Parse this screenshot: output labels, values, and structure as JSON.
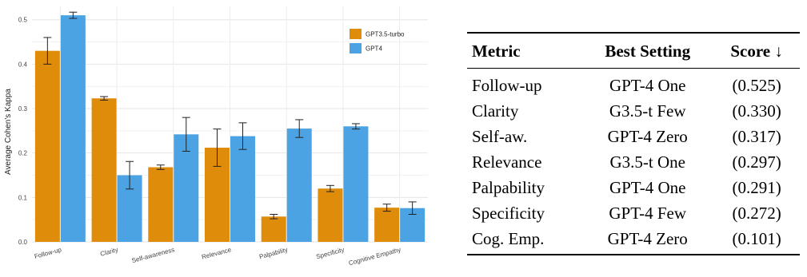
{
  "chart_data": {
    "type": "bar",
    "categories": [
      "Follow-up",
      "Clarity",
      "Self-awareness",
      "Relevance",
      "Palpability",
      "Specificity",
      "Cognitive Empathy"
    ],
    "series": [
      {
        "name": "GPT3.5-turbo",
        "color": "#E08C0B",
        "values": [
          0.43,
          0.323,
          0.168,
          0.212,
          0.057,
          0.12,
          0.077
        ],
        "errors": [
          0.03,
          0.004,
          0.005,
          0.042,
          0.005,
          0.007,
          0.008
        ]
      },
      {
        "name": "GPT4",
        "color": "#4BA3E3",
        "values": [
          0.51,
          0.15,
          0.242,
          0.238,
          0.255,
          0.26,
          0.076
        ],
        "errors": [
          0.007,
          0.031,
          0.038,
          0.03,
          0.02,
          0.006,
          0.014
        ]
      }
    ],
    "ylabel": "Average Cohen's Kappa",
    "yticks": [
      "0.0",
      "0.1",
      "0.2",
      "0.3",
      "0.4",
      "0.5"
    ],
    "ylim": [
      0,
      0.53
    ],
    "grid": true,
    "legend": "top-right"
  },
  "table": {
    "headers": {
      "metric": "Metric",
      "setting": "Best Setting",
      "score": "Score ↓"
    },
    "rows": [
      {
        "metric": "Follow-up",
        "setting": "GPT-4 One",
        "score": "(0.525)"
      },
      {
        "metric": "Clarity",
        "setting": "G3.5-t Few",
        "score": "(0.330)"
      },
      {
        "metric": "Self-aw.",
        "setting": "GPT-4 Zero",
        "score": "(0.317)"
      },
      {
        "metric": "Relevance",
        "setting": "G3.5-t One",
        "score": "(0.297)"
      },
      {
        "metric": "Palpability",
        "setting": "GPT-4 One",
        "score": "(0.291)"
      },
      {
        "metric": "Specificity",
        "setting": "GPT-4 Few",
        "score": "(0.272)"
      },
      {
        "metric": "Cog. Emp.",
        "setting": "GPT-4 Zero",
        "score": "(0.101)"
      }
    ]
  }
}
